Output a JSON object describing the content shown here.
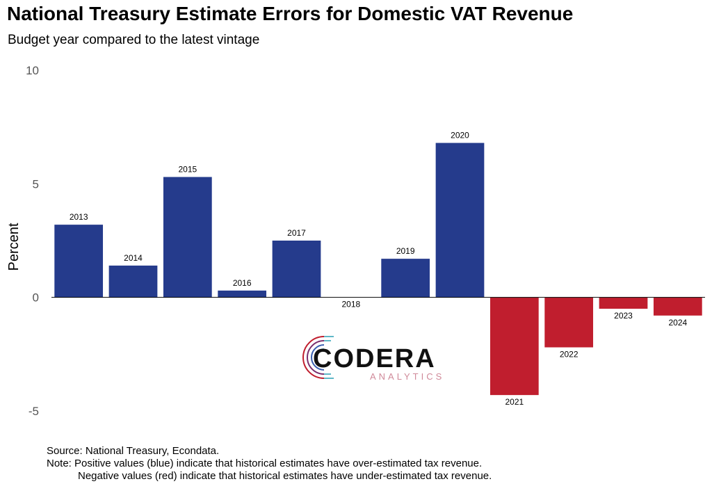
{
  "title": "National Treasury Estimate Errors for Domestic VAT Revenue",
  "subtitle": "Budget year compared to the latest vintage",
  "colors": {
    "positive": "#253b8c",
    "negative": "#c01e2e",
    "axis_text": "#555555"
  },
  "chart_data": {
    "type": "bar",
    "title": "National Treasury Estimate Errors for Domestic VAT Revenue",
    "subtitle": "Budget year compared to the latest vintage",
    "xlabel": "",
    "ylabel": "Percent",
    "ylim": [
      -5,
      10
    ],
    "yticks": [
      "10",
      "5",
      "0",
      "-5"
    ],
    "grid": false,
    "categories": [
      "2013",
      "2014",
      "2015",
      "2016",
      "2017",
      "2018",
      "2019",
      "2020",
      "2021",
      "2022",
      "2023",
      "2024"
    ],
    "values": [
      3.2,
      1.4,
      5.3,
      0.3,
      2.5,
      0.0,
      1.7,
      6.8,
      -4.3,
      -2.2,
      -0.5,
      -0.8
    ]
  },
  "logo": {
    "name": "CODERA",
    "tagline": "ANALYTICS"
  },
  "footer": {
    "source": "Source: National Treasury, Econdata.",
    "note1": "Note: Positive values (blue) indicate that historical estimates have over-estimated tax revenue.",
    "note2": "Negative values (red) indicate that historical estimates have under-estimated tax revenue."
  }
}
